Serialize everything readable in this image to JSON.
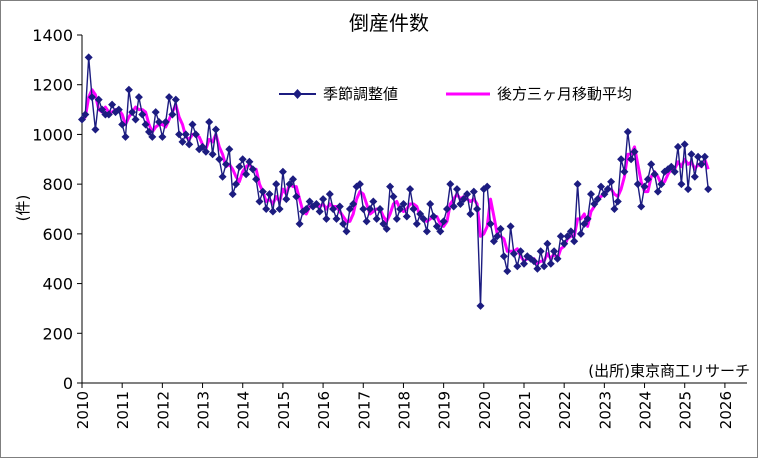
{
  "chart_data": {
    "type": "line",
    "title": "倒産件数",
    "ylabel": "(件)",
    "xlabel": "",
    "source_note": "(出所)東京商工リサーチ",
    "ylim": [
      0,
      1400
    ],
    "yticks": [
      0,
      200,
      400,
      600,
      800,
      1000,
      1200,
      1400
    ],
    "xlim": [
      2010,
      2026.55
    ],
    "xticks": [
      "2010",
      "2011",
      "2012",
      "2013",
      "2014",
      "2015",
      "2016",
      "2017",
      "2018",
      "2019",
      "2020",
      "2021",
      "2022",
      "2023",
      "2024",
      "2025",
      "2026"
    ],
    "grid": false,
    "legend_position": "top-right",
    "colors": {
      "series1": "#1c1c80",
      "series2": "#ff00ff"
    },
    "series": [
      {
        "name": "季節調整値",
        "marker": "diamond",
        "values": [
          1060,
          1080,
          1310,
          1150,
          1020,
          1140,
          1100,
          1080,
          1080,
          1120,
          1090,
          1100,
          1040,
          990,
          1180,
          1090,
          1060,
          1150,
          1080,
          1040,
          1010,
          990,
          1090,
          1050,
          990,
          1050,
          1150,
          1080,
          1140,
          1000,
          970,
          1000,
          960,
          1040,
          1000,
          940,
          950,
          930,
          1050,
          920,
          1020,
          900,
          830,
          880,
          940,
          760,
          800,
          870,
          900,
          840,
          890,
          860,
          820,
          730,
          770,
          700,
          760,
          690,
          800,
          700,
          850,
          740,
          800,
          820,
          750,
          640,
          690,
          700,
          730,
          710,
          720,
          690,
          740,
          660,
          760,
          700,
          660,
          710,
          640,
          610,
          700,
          720,
          790,
          800,
          700,
          650,
          700,
          730,
          660,
          700,
          640,
          620,
          790,
          750,
          660,
          700,
          720,
          670,
          780,
          700,
          640,
          680,
          660,
          610,
          720,
          670,
          630,
          610,
          650,
          700,
          800,
          710,
          780,
          720,
          740,
          760,
          680,
          770,
          700,
          310,
          780,
          790,
          640,
          570,
          590,
          620,
          510,
          450,
          630,
          520,
          470,
          530,
          480,
          510,
          500,
          490,
          460,
          530,
          470,
          560,
          480,
          530,
          500,
          590,
          560,
          590,
          610,
          570,
          800,
          600,
          640,
          660,
          760,
          720,
          740,
          790,
          760,
          780,
          810,
          700,
          730,
          900,
          850,
          1010,
          900,
          930,
          800,
          710,
          790,
          820,
          880,
          840,
          770,
          800,
          850,
          860,
          870,
          850,
          950,
          800,
          960,
          780,
          920,
          830,
          910,
          880,
          910,
          780
        ]
      },
      {
        "name": "後方三ヶ月移動平均",
        "values": [
          1060,
          1070,
          1150,
          1180,
          1160,
          1100,
          1090,
          1110,
          1090,
          1090,
          1100,
          1100,
          1080,
          1040,
          1070,
          1090,
          1110,
          1100,
          1100,
          1090,
          1040,
          1010,
          1030,
          1040,
          1040,
          1030,
          1060,
          1090,
          1120,
          1070,
          1040,
          990,
          980,
          1000,
          1000,
          990,
          960,
          940,
          980,
          970,
          1000,
          950,
          920,
          870,
          880,
          860,
          830,
          810,
          850,
          870,
          880,
          860,
          860,
          800,
          770,
          730,
          740,
          720,
          750,
          730,
          780,
          760,
          800,
          790,
          790,
          740,
          690,
          680,
          710,
          710,
          720,
          710,
          720,
          700,
          720,
          710,
          710,
          690,
          670,
          650,
          650,
          680,
          740,
          770,
          760,
          720,
          680,
          690,
          700,
          700,
          670,
          650,
          680,
          720,
          730,
          700,
          690,
          700,
          720,
          720,
          710,
          670,
          660,
          650,
          660,
          670,
          670,
          640,
          630,
          650,
          720,
          740,
          760,
          740,
          750,
          740,
          730,
          740,
          720,
          590,
          600,
          630,
          740,
          670,
          600,
          590,
          580,
          530,
          530,
          530,
          540,
          510,
          490,
          500,
          500,
          500,
          480,
          490,
          490,
          520,
          500,
          520,
          500,
          540,
          550,
          580,
          590,
          590,
          660,
          660,
          680,
          630,
          690,
          710,
          740,
          750,
          760,
          780,
          780,
          760,
          750,
          780,
          830,
          920,
          920,
          950,
          880,
          810,
          770,
          770,
          830,
          850,
          830,
          800,
          810,
          840,
          860,
          860,
          890,
          870,
          900,
          880,
          890,
          860,
          880,
          870,
          900,
          860
        ]
      }
    ]
  }
}
